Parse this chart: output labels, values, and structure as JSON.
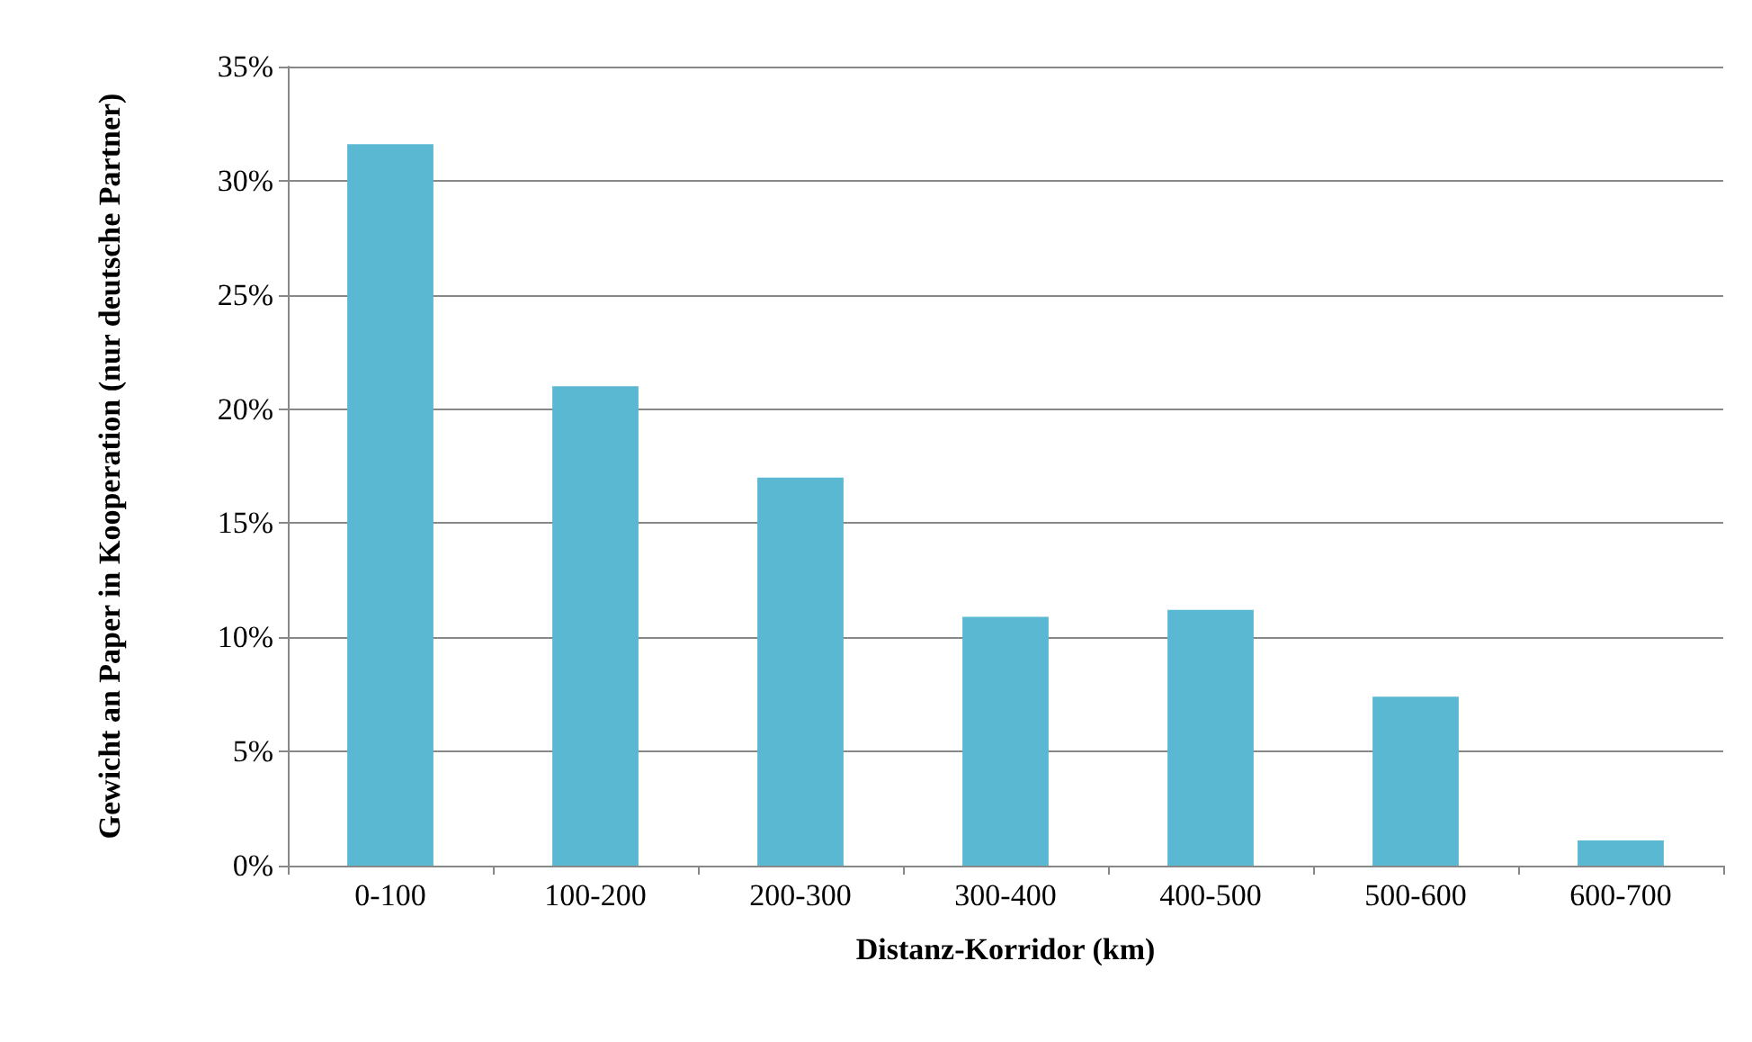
{
  "chart_data": {
    "type": "bar",
    "xlabel": "Distanz-Korridor (km)",
    "ylabel": "Gewicht an Paper in Kooperation (nur deutsche Partner)",
    "categories": [
      "0-100",
      "100-200",
      "200-300",
      "300-400",
      "400-500",
      "500-600",
      "600-700"
    ],
    "values": [
      31.6,
      21.0,
      17.0,
      10.9,
      11.2,
      7.4,
      1.1
    ],
    "color": "#5bb8d3",
    "ylim": [
      0,
      35
    ],
    "yticks": [
      {
        "value": 0,
        "label": "0%"
      },
      {
        "value": 5,
        "label": "5%"
      },
      {
        "value": 10,
        "label": "10%"
      },
      {
        "value": 15,
        "label": "15%"
      },
      {
        "value": 20,
        "label": "20%"
      },
      {
        "value": 25,
        "label": "25%"
      },
      {
        "value": 30,
        "label": "30%"
      },
      {
        "value": 35,
        "label": "35%"
      }
    ],
    "grid": "y"
  }
}
